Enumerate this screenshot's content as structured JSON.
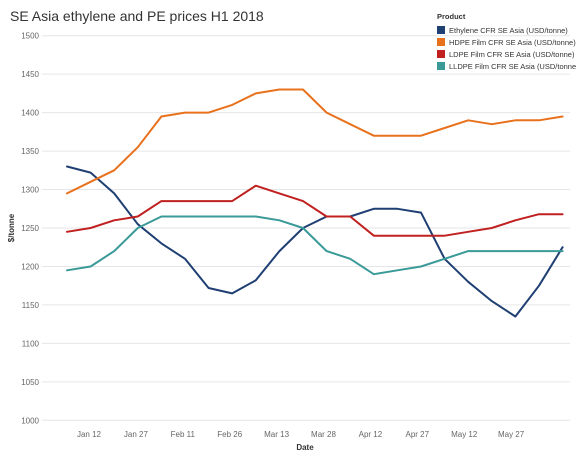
{
  "chart_data": {
    "type": "line",
    "title": "SE Asia ethylene and PE prices H1 2018",
    "xlabel": "Date",
    "ylabel": "$/tonne",
    "ylim": [
      990,
      1510
    ],
    "yticks": [
      1000,
      1050,
      1100,
      1150,
      1200,
      1250,
      1300,
      1350,
      1400,
      1450,
      1500
    ],
    "x_tick_labels": [
      "Jan 12",
      "Jan 27",
      "Feb 11",
      "Feb 26",
      "Mar 13",
      "Mar 28",
      "Apr 12",
      "Apr 27",
      "May 12",
      "May 27"
    ],
    "legend_title": "Product",
    "legend_position": "top-right",
    "grid": "horizontal",
    "x": [
      "Jan 5",
      "Jan 12",
      "Jan 19",
      "Jan 26",
      "Feb 2",
      "Feb 9",
      "Feb 16",
      "Feb 23",
      "Mar 2",
      "Mar 9",
      "Mar 16",
      "Mar 23",
      "Mar 30",
      "Apr 6",
      "Apr 13",
      "Apr 20",
      "Apr 27",
      "May 4",
      "May 11",
      "May 18",
      "May 25",
      "Jun 1"
    ],
    "series": [
      {
        "name": "Ethylene CFR SE Asia  (USD/tonne)",
        "color": "#1f3f72",
        "values": [
          1330,
          1322,
          1295,
          1255,
          1230,
          1210,
          1172,
          1165,
          1182,
          1220,
          1250,
          1265,
          1265,
          1275,
          1275,
          1270,
          1210,
          1180,
          1155,
          1135,
          1175,
          1225
        ]
      },
      {
        "name": "HDPE Film CFR SE Asia (USD/tonne)",
        "color": "#e8711c",
        "values": [
          1295,
          1310,
          1325,
          1355,
          1395,
          1400,
          1400,
          1410,
          1425,
          1430,
          1430,
          1400,
          1385,
          1370,
          1370,
          1370,
          1380,
          1390,
          1385,
          1390,
          1390,
          1395
        ]
      },
      {
        "name": "LDPE Film CFR SE Asia (USD/tonne)",
        "color": "#c0201f",
        "values": [
          1245,
          1250,
          1260,
          1265,
          1285,
          1285,
          1285,
          1285,
          1305,
          1295,
          1285,
          1265,
          1265,
          1240,
          1240,
          1240,
          1240,
          1245,
          1250,
          1260,
          1268,
          1268
        ]
      },
      {
        "name": "LLDPE Film CFR SE Asia (USD/tonne)",
        "color": "#3a9a98",
        "values": [
          1195,
          1200,
          1220,
          1250,
          1265,
          1265,
          1265,
          1265,
          1265,
          1260,
          1250,
          1220,
          1210,
          1190,
          1195,
          1200,
          1210,
          1220,
          1220,
          1220,
          1220,
          1220
        ]
      }
    ]
  }
}
